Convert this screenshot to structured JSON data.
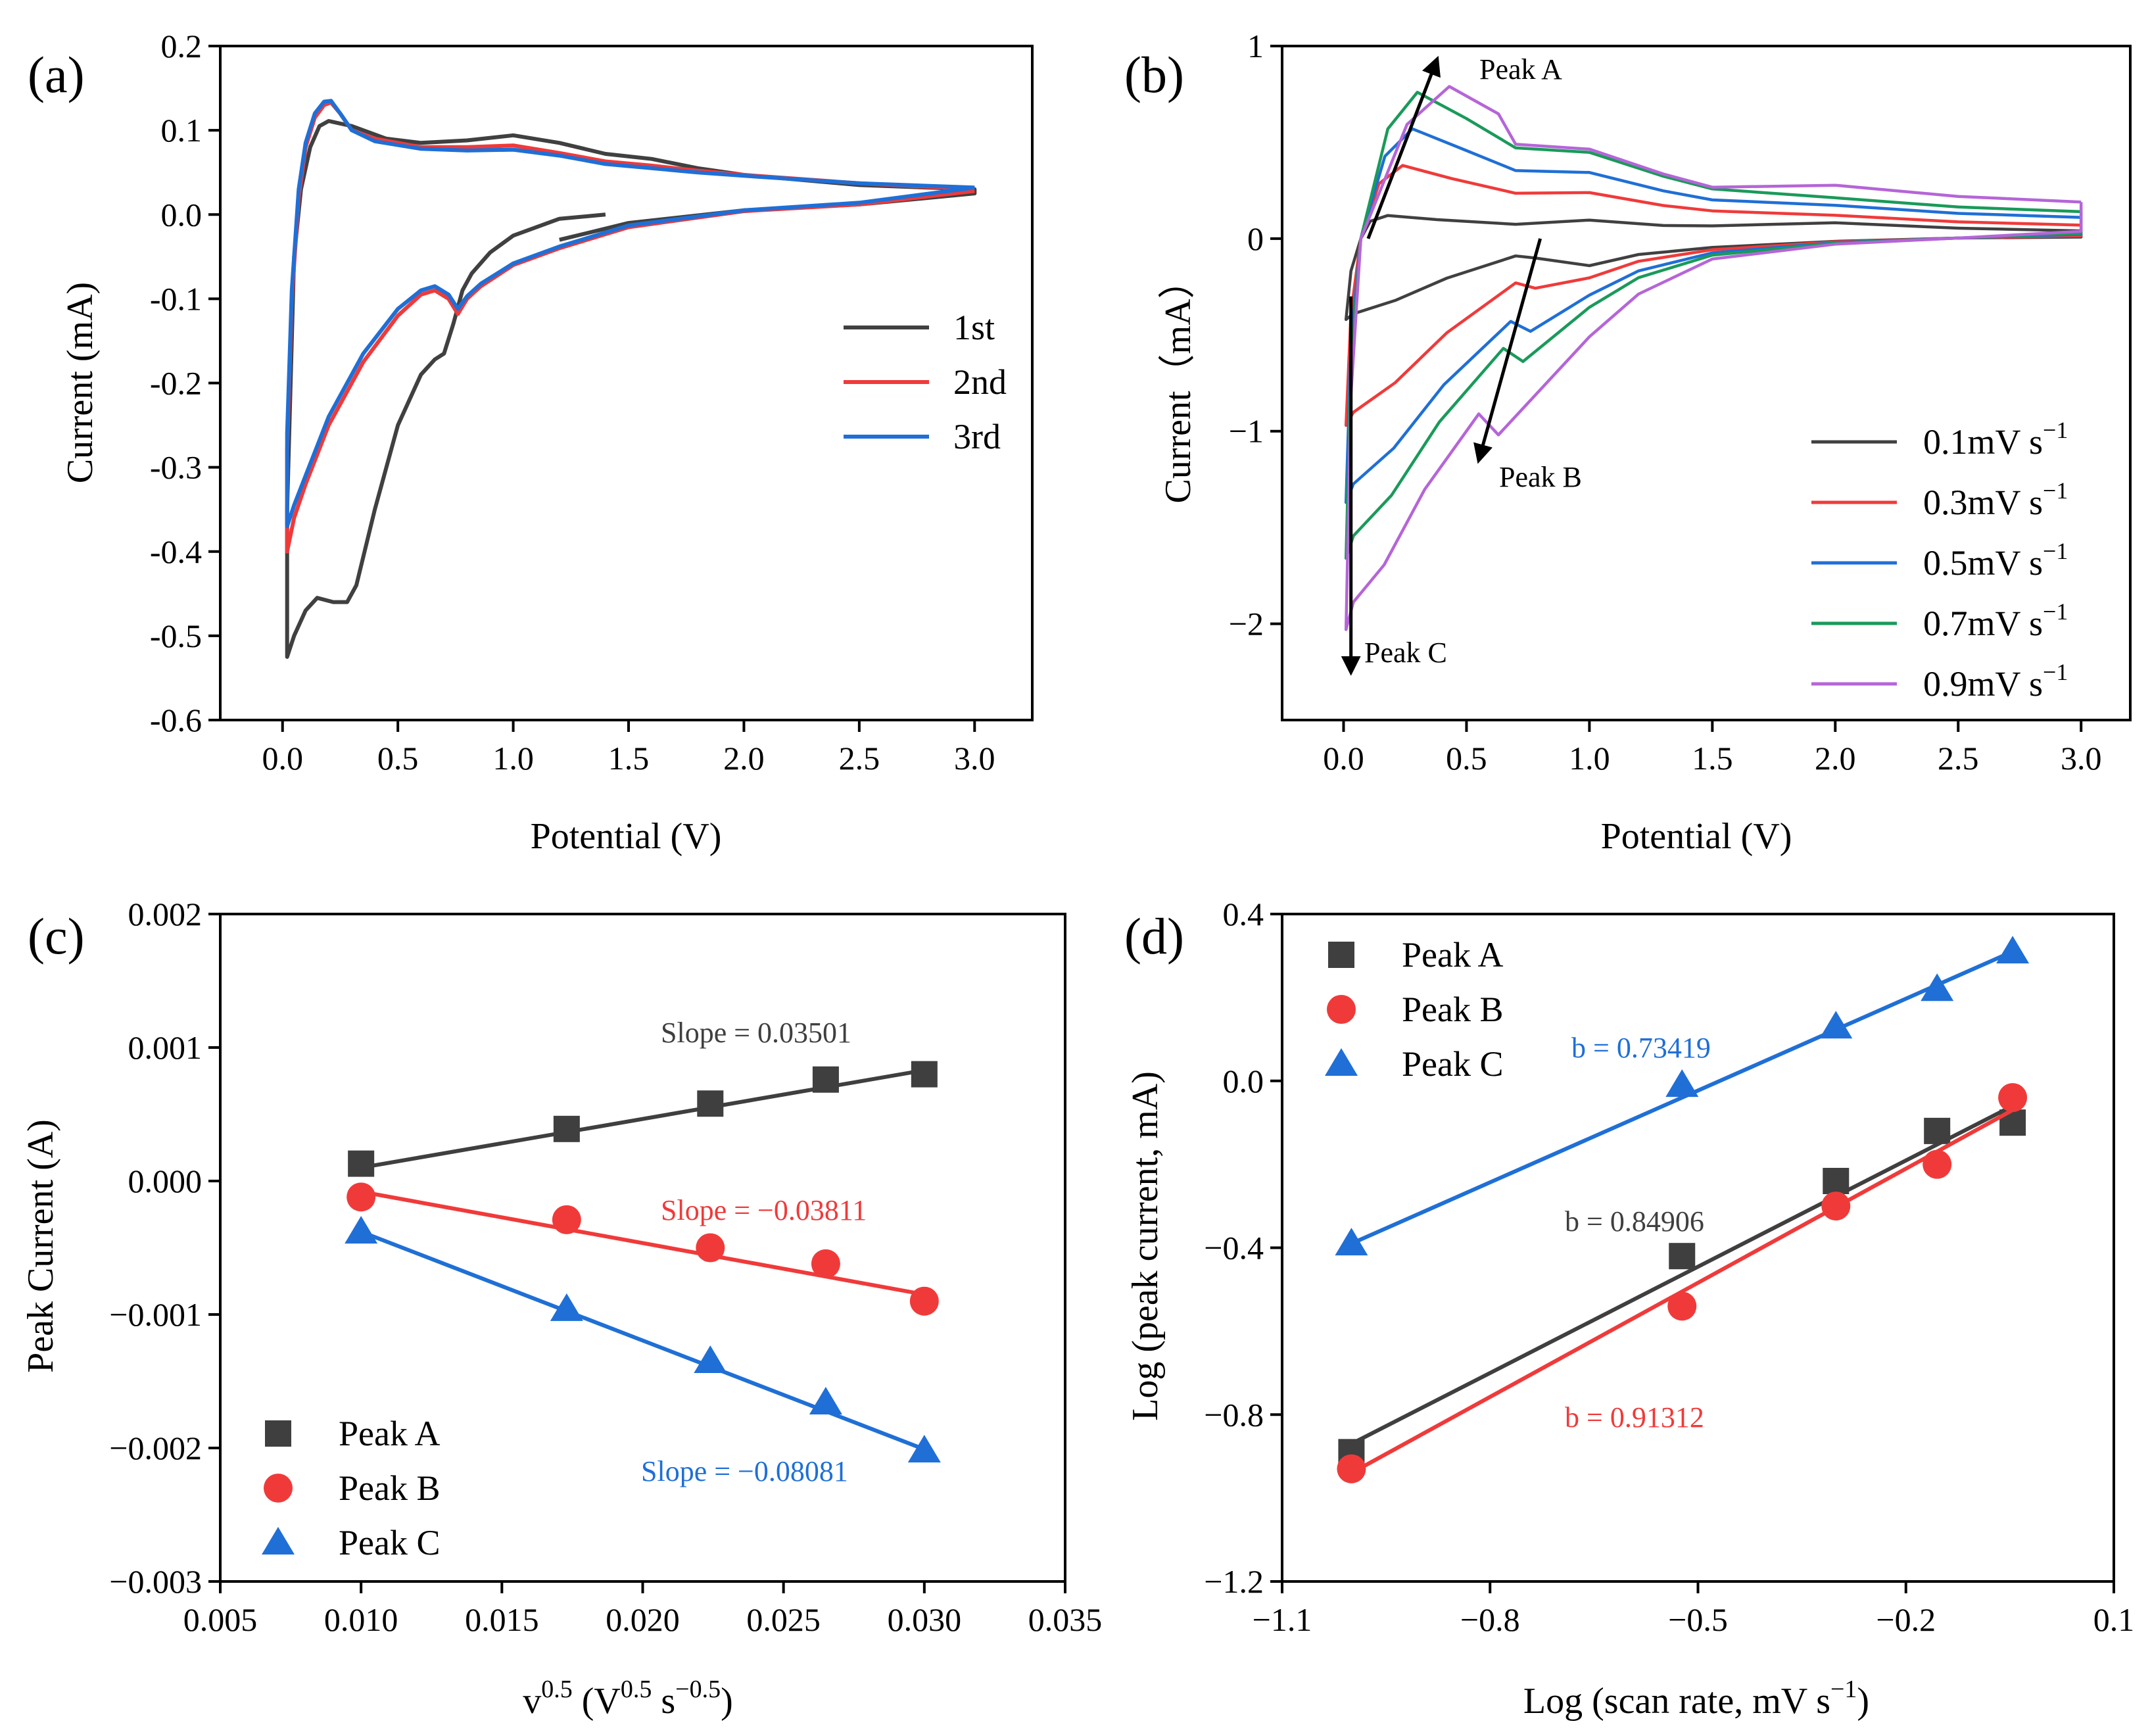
{
  "chart_data": [
    {
      "panel": "(a)",
      "type": "line",
      "xlabel": "Potential (V)",
      "ylabel": "Current (mA)",
      "xlim": [
        -0.27,
        3.25
      ],
      "ylim": [
        -0.6,
        0.2
      ],
      "xticks": [
        "0.0",
        "0.5",
        "1.0",
        "1.5",
        "2.0",
        "2.5",
        "3.0"
      ],
      "xtick_values": [
        0,
        0.5,
        1,
        1.5,
        2,
        2.5,
        3
      ],
      "yticks": [
        "0.2",
        "0.1",
        "0.0",
        "-0.1",
        "-0.2",
        "-0.3",
        "-0.4",
        "-0.5",
        "-0.6"
      ],
      "ytick_values": [
        0.2,
        0.1,
        0,
        -0.1,
        -0.2,
        -0.3,
        -0.4,
        -0.5,
        -0.6
      ],
      "legend_position": "middle-right",
      "series": [
        {
          "name": "1st",
          "color": "#404040",
          "points": [
            [
              1.4,
              0.0
            ],
            [
              1.2,
              -0.005
            ],
            [
              1.0,
              -0.025
            ],
            [
              0.9,
              -0.045
            ],
            [
              0.82,
              -0.07
            ],
            [
              0.78,
              -0.09
            ],
            [
              0.74,
              -0.13
            ],
            [
              0.7,
              -0.165
            ],
            [
              0.66,
              -0.172
            ],
            [
              0.6,
              -0.19
            ],
            [
              0.5,
              -0.25
            ],
            [
              0.4,
              -0.35
            ],
            [
              0.32,
              -0.44
            ],
            [
              0.28,
              -0.46
            ],
            [
              0.22,
              -0.46
            ],
            [
              0.15,
              -0.455
            ],
            [
              0.1,
              -0.47
            ],
            [
              0.05,
              -0.5
            ],
            [
              0.02,
              -0.525
            ],
            [
              0.02,
              -0.35
            ],
            [
              0.05,
              -0.05
            ],
            [
              0.08,
              0.03
            ],
            [
              0.12,
              0.08
            ],
            [
              0.16,
              0.105
            ],
            [
              0.2,
              0.111
            ],
            [
              0.3,
              0.105
            ],
            [
              0.45,
              0.09
            ],
            [
              0.6,
              0.085
            ],
            [
              0.8,
              0.088
            ],
            [
              1.0,
              0.094
            ],
            [
              1.2,
              0.085
            ],
            [
              1.4,
              0.072
            ],
            [
              1.6,
              0.066
            ],
            [
              1.8,
              0.055
            ],
            [
              2.0,
              0.047
            ],
            [
              2.5,
              0.035
            ],
            [
              3.0,
              0.03
            ],
            [
              3.0,
              0.025
            ],
            [
              2.5,
              0.012
            ],
            [
              2.0,
              0.005
            ],
            [
              1.5,
              -0.01
            ],
            [
              1.2,
              -0.03
            ]
          ]
        },
        {
          "name": "2nd",
          "color": "#f03a3a",
          "points": [
            [
              3.0,
              0.028
            ],
            [
              2.5,
              0.012
            ],
            [
              2.0,
              0.004
            ],
            [
              1.5,
              -0.015
            ],
            [
              1.2,
              -0.04
            ],
            [
              1.0,
              -0.06
            ],
            [
              0.86,
              -0.085
            ],
            [
              0.8,
              -0.1
            ],
            [
              0.76,
              -0.118
            ],
            [
              0.72,
              -0.1
            ],
            [
              0.66,
              -0.09
            ],
            [
              0.6,
              -0.095
            ],
            [
              0.5,
              -0.12
            ],
            [
              0.35,
              -0.175
            ],
            [
              0.2,
              -0.25
            ],
            [
              0.1,
              -0.32
            ],
            [
              0.05,
              -0.36
            ],
            [
              0.02,
              -0.4
            ],
            [
              0.02,
              -0.28
            ],
            [
              0.04,
              -0.1
            ],
            [
              0.07,
              0.02
            ],
            [
              0.1,
              0.08
            ],
            [
              0.14,
              0.115
            ],
            [
              0.18,
              0.13
            ],
            [
              0.21,
              0.133
            ],
            [
              0.25,
              0.12
            ],
            [
              0.3,
              0.1
            ],
            [
              0.4,
              0.09
            ],
            [
              0.6,
              0.08
            ],
            [
              0.8,
              0.08
            ],
            [
              1.0,
              0.082
            ],
            [
              1.2,
              0.073
            ],
            [
              1.4,
              0.063
            ],
            [
              1.6,
              0.058
            ],
            [
              1.8,
              0.052
            ],
            [
              2.0,
              0.047
            ],
            [
              2.5,
              0.037
            ],
            [
              3.0,
              0.03
            ]
          ]
        },
        {
          "name": "3rd",
          "color": "#1f6fd6",
          "points": [
            [
              3.0,
              0.032
            ],
            [
              2.5,
              0.014
            ],
            [
              2.0,
              0.005
            ],
            [
              1.5,
              -0.013
            ],
            [
              1.2,
              -0.038
            ],
            [
              1.0,
              -0.058
            ],
            [
              0.86,
              -0.082
            ],
            [
              0.8,
              -0.097
            ],
            [
              0.76,
              -0.112
            ],
            [
              0.72,
              -0.095
            ],
            [
              0.66,
              -0.085
            ],
            [
              0.6,
              -0.09
            ],
            [
              0.5,
              -0.112
            ],
            [
              0.35,
              -0.165
            ],
            [
              0.2,
              -0.24
            ],
            [
              0.1,
              -0.31
            ],
            [
              0.05,
              -0.345
            ],
            [
              0.02,
              -0.37
            ],
            [
              0.02,
              -0.26
            ],
            [
              0.04,
              -0.09
            ],
            [
              0.07,
              0.03
            ],
            [
              0.1,
              0.085
            ],
            [
              0.14,
              0.12
            ],
            [
              0.18,
              0.134
            ],
            [
              0.21,
              0.135
            ],
            [
              0.25,
              0.12
            ],
            [
              0.3,
              0.1
            ],
            [
              0.4,
              0.087
            ],
            [
              0.6,
              0.078
            ],
            [
              0.8,
              0.076
            ],
            [
              1.0,
              0.077
            ],
            [
              1.2,
              0.07
            ],
            [
              1.4,
              0.06
            ],
            [
              1.6,
              0.055
            ],
            [
              1.8,
              0.05
            ],
            [
              2.0,
              0.046
            ],
            [
              2.5,
              0.037
            ],
            [
              3.0,
              0.032
            ]
          ]
        }
      ]
    },
    {
      "panel": "(b)",
      "type": "line",
      "xlabel": "Potential (V)",
      "ylabel": "Current（mA）",
      "xlim": [
        -0.25,
        3.2
      ],
      "ylim": [
        -2.5,
        1.0
      ],
      "xticks": [
        "0.0",
        "0.5",
        "1.0",
        "1.5",
        "2.0",
        "2.5",
        "3.0"
      ],
      "xtick_values": [
        0,
        0.5,
        1,
        1.5,
        2,
        2.5,
        3
      ],
      "yticks": [
        "1",
        "0",
        "−1",
        "−2"
      ],
      "ytick_values": [
        1,
        0,
        -1,
        -2
      ],
      "legend_position": "bottom-right",
      "annotations": [
        {
          "text": "Peak A",
          "x": 0.6,
          "y": 0.87
        },
        {
          "text": "Peak B",
          "x": 0.68,
          "y": -1.22
        },
        {
          "text": "Peak C",
          "x": 0.1,
          "y": -2.17
        }
      ],
      "series": [
        {
          "name": "0.1mV s",
          "sup": "−1",
          "color": "#404040",
          "oxpeak": 0.12,
          "oxpos": 0.18,
          "redpeak": -0.09,
          "redpos": 0.7,
          "min": -0.42,
          "tail": 0.04
        },
        {
          "name": "0.3mV s",
          "sup": "−1",
          "color": "#f03a3a",
          "oxpeak": 0.38,
          "oxpos": 0.24,
          "redpeak": -0.23,
          "redpos": 0.7,
          "min": -0.97,
          "tail": 0.07
        },
        {
          "name": "0.5mV s",
          "sup": "−1",
          "color": "#1f6fd6",
          "oxpeak": 0.57,
          "oxpos": 0.28,
          "redpeak": -0.43,
          "redpos": 0.68,
          "min": -1.37,
          "tail": 0.11
        },
        {
          "name": "0.7mV s",
          "sup": "−1",
          "color": "#1a9a5a",
          "oxpeak": 0.76,
          "oxpos": 0.3,
          "redpeak": -0.57,
          "redpos": 0.65,
          "min": -1.66,
          "tail": 0.14
        },
        {
          "name": "0.9mV s",
          "sup": "−1",
          "color": "#b565d8",
          "oxpeak": 0.79,
          "oxpos": 0.43,
          "redpeak": -0.91,
          "redpos": 0.55,
          "min": -2.03,
          "tail": 0.19
        }
      ]
    },
    {
      "panel": "(c)",
      "type": "scatter",
      "xlabel": "v",
      "xlabel_sup1": "0.5",
      "xlabel_mid": " (V",
      "xlabel_sup2": "0.5",
      "xlabel_mid2": " s",
      "xlabel_sup3": "−0.5",
      "xlabel_end": ")",
      "ylabel": "Peak Current (A)",
      "xlim": [
        0.005,
        0.035
      ],
      "ylim": [
        -0.003,
        0.002
      ],
      "xticks": [
        "0.005",
        "0.010",
        "0.015",
        "0.020",
        "0.025",
        "0.030",
        "0.035"
      ],
      "xtick_values": [
        0.005,
        0.01,
        0.015,
        0.02,
        0.025,
        0.03,
        0.035
      ],
      "yticks": [
        "0.002",
        "0.001",
        "0.000",
        "−0.001",
        "−0.002",
        "−0.003"
      ],
      "ytick_values": [
        0.002,
        0.001,
        0,
        -0.001,
        -0.002,
        -0.003
      ],
      "legend_position": "bottom-left",
      "x": [
        0.01,
        0.0173,
        0.0224,
        0.0265,
        0.03
      ],
      "series": [
        {
          "name": "Peak A",
          "marker": "square",
          "color": "#3f3f3f",
          "values": [
            0.00013,
            0.00039,
            0.00058,
            0.00076,
            0.0008
          ],
          "fit": [
            0.0001,
            0.00083
          ],
          "slope_label": "Slope = 0.03501"
        },
        {
          "name": "Peak B",
          "marker": "circle",
          "color": "#f03a3a",
          "values": [
            -0.00012,
            -0.00029,
            -0.0005,
            -0.00062,
            -0.0009
          ],
          "fit": [
            -8e-05,
            -0.00085
          ],
          "slope_label": "Slope = −0.03811"
        },
        {
          "name": "Peak C",
          "marker": "triangle",
          "color": "#1f6fd6",
          "values": [
            -0.00038,
            -0.00096,
            -0.00135,
            -0.00166,
            -0.00202
          ],
          "fit": [
            -0.00038,
            -0.00201
          ],
          "slope_label": "Slope = −0.08081"
        }
      ]
    },
    {
      "panel": "(d)",
      "type": "scatter",
      "xlabel": "Log (scan rate, mV s",
      "xlabel_sup": "−1",
      "xlabel_end": ")",
      "ylabel": "Log (peak current, mA)",
      "xlim": [
        -1.1,
        0.1
      ],
      "ylim": [
        -1.2,
        0.4
      ],
      "xticks": [
        "−1.1",
        "−0.8",
        "−0.5",
        "−0.2",
        "0.1"
      ],
      "xtick_values": [
        -1.1,
        -0.8,
        -0.5,
        -0.2,
        0.1
      ],
      "yticks": [
        "0.4",
        "0.0",
        "−0.4",
        "−0.8",
        "−1.2"
      ],
      "ytick_values": [
        0.4,
        0,
        -0.4,
        -0.8,
        -1.2
      ],
      "legend_position": "top-left",
      "x": [
        -1.0,
        -0.523,
        -0.301,
        -0.155,
        -0.046
      ],
      "series": [
        {
          "name": "Peak A",
          "marker": "square",
          "color": "#3f3f3f",
          "values": [
            -0.89,
            -0.42,
            -0.24,
            -0.12,
            -0.1
          ],
          "fit": [
            -0.87,
            -0.06
          ],
          "b_label": "b = 0.84906"
        },
        {
          "name": "Peak B",
          "marker": "circle",
          "color": "#f03a3a",
          "values": [
            -0.93,
            -0.54,
            -0.3,
            -0.2,
            -0.04
          ],
          "fit": [
            -0.94,
            -0.07
          ],
          "b_label": "b = 0.91312"
        },
        {
          "name": "Peak C",
          "marker": "triangle",
          "color": "#1f6fd6",
          "values": [
            -0.39,
            -0.01,
            0.13,
            0.22,
            0.31
          ],
          "fit": [
            -0.39,
            0.31
          ],
          "b_label": "b = 0.73419"
        }
      ]
    }
  ]
}
